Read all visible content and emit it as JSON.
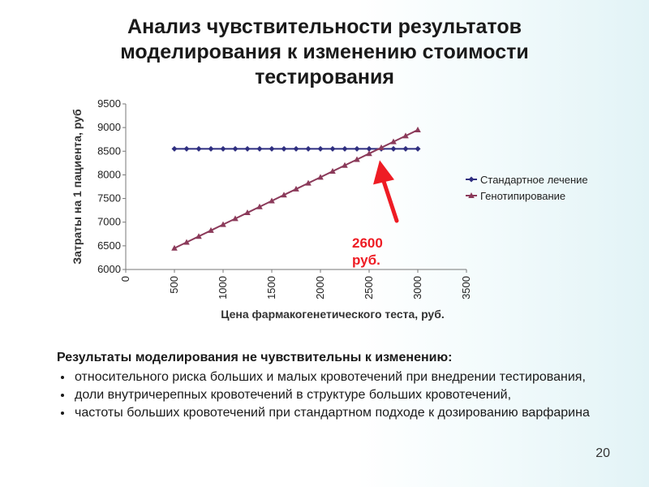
{
  "slide": {
    "title": "Анализ чувствительности результатов\nмоделирования к изменению стоимости\nтестирования",
    "page_number": "20"
  },
  "chart_data": {
    "type": "line",
    "title": "",
    "xlabel": "Цена фармакогенетического теста, руб.",
    "ylabel": "Затраты на 1 пациента, руб",
    "xlim": [
      0,
      3500
    ],
    "ylim": [
      6000,
      9500
    ],
    "x_ticks": [
      0,
      500,
      1000,
      1500,
      2000,
      2500,
      3000,
      3500
    ],
    "y_ticks": [
      6000,
      6500,
      7000,
      7500,
      8000,
      8500,
      9000,
      9500
    ],
    "grid": false,
    "legend_position": "right",
    "x": [
      500,
      625,
      750,
      875,
      1000,
      1125,
      1250,
      1375,
      1500,
      1625,
      1750,
      1875,
      2000,
      2125,
      2250,
      2375,
      2500,
      2625,
      2750,
      2875,
      3000
    ],
    "series": [
      {
        "name": "Стандартное лечение",
        "color": "#2f2f80",
        "marker": "diamond",
        "values": [
          8550,
          8550,
          8550,
          8550,
          8550,
          8550,
          8550,
          8550,
          8550,
          8550,
          8550,
          8550,
          8550,
          8550,
          8550,
          8550,
          8550,
          8550,
          8550,
          8550,
          8550
        ]
      },
      {
        "name": "Генотипирование",
        "color": "#8b3a5a",
        "marker": "triangle",
        "values": [
          6450,
          6575,
          6700,
          6825,
          6950,
          7075,
          7200,
          7325,
          7450,
          7575,
          7700,
          7825,
          7950,
          8075,
          8200,
          8325,
          8450,
          8575,
          8700,
          8825,
          8950
        ]
      }
    ],
    "annotation": {
      "text": "2600\nруб.",
      "x": 2600,
      "color": "#ee1c24"
    }
  },
  "results": {
    "heading": "Результаты моделирования не чувствительны к изменению:",
    "items": [
      "относительного риска  больших и малых кровотечений при внедрении тестирования,",
      "доли внутричерепных кровотечений в структуре больших кровотечений,",
      "частоты больших кровотечений при стандартном подходе к дозированию варфарина"
    ]
  }
}
